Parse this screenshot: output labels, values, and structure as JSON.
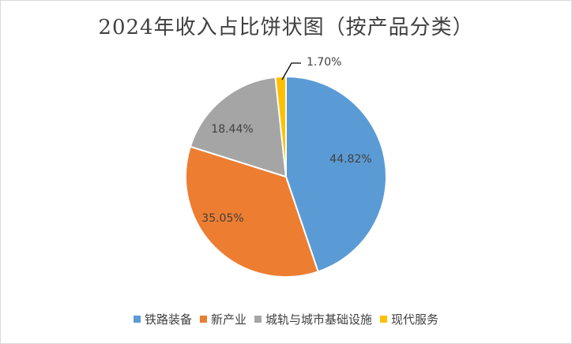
{
  "chart_data": {
    "type": "pie",
    "title": "2024年收入占比饼状图（按产品分类）",
    "categories": [
      "铁路装备",
      "新产业",
      "城轨与城市基础设施",
      "现代服务"
    ],
    "values": [
      44.82,
      35.05,
      18.44,
      1.7
    ],
    "labels": [
      "44.82%",
      "35.05%",
      "18.44%",
      "1.70%"
    ],
    "colors": [
      "#5B9BD5",
      "#ED7D31",
      "#A5A5A5",
      "#FFC000"
    ],
    "legend": "bottom",
    "start_angle": "top, clockwise"
  }
}
